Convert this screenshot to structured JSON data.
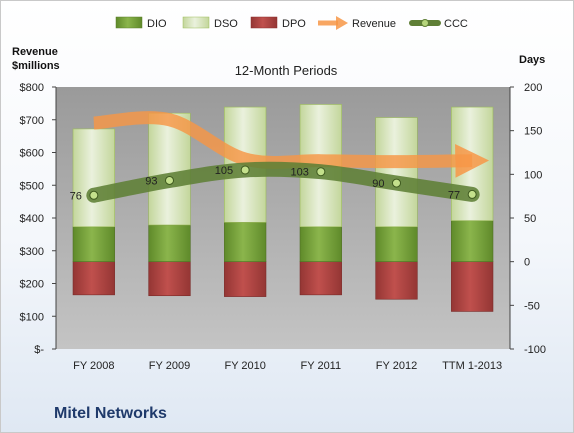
{
  "company": "Mitel Networks",
  "chart_data": {
    "type": "bar",
    "title": "12-Month Periods",
    "categories": [
      "FY 2008",
      "FY 2009",
      "FY 2010",
      "FY 2011",
      "FY 2012",
      "TTM 1-2013"
    ],
    "left_axis": {
      "label_line1": "Revenue",
      "label_line2": "$millions",
      "ylim": [
        0,
        800
      ],
      "ticks": [
        0,
        100,
        200,
        300,
        400,
        500,
        600,
        700,
        800
      ],
      "tick_labels": [
        "$-",
        "$100",
        "$200",
        "$300",
        "$400",
        "$500",
        "$600",
        "$700",
        "$800"
      ]
    },
    "right_axis": {
      "label": "Days",
      "ylim": [
        -100,
        200
      ],
      "ticks": [
        -100,
        -50,
        0,
        50,
        100,
        150,
        200
      ],
      "tick_labels": [
        "-100",
        "-50",
        "0",
        "50",
        "100",
        "150",
        "200"
      ]
    },
    "series": [
      {
        "name": "DIO",
        "axis": "right",
        "kind": "stacked-bar",
        "color": "#77a03a",
        "values": [
          40,
          42,
          45,
          40,
          40,
          47
        ]
      },
      {
        "name": "DSO",
        "axis": "right",
        "kind": "stacked-bar",
        "color": "#d7e4bd",
        "values": [
          112,
          128,
          132,
          140,
          125,
          130
        ]
      },
      {
        "name": "DPO",
        "axis": "right",
        "kind": "negative-bar",
        "color": "#c0504d",
        "values": [
          -38,
          -39,
          -40,
          -38,
          -43,
          -57
        ]
      },
      {
        "name": "Revenue",
        "axis": "left",
        "kind": "arrow-line",
        "color": "#f79646",
        "values": [
          690,
          700,
          580,
          575,
          572,
          575
        ]
      },
      {
        "name": "CCC",
        "axis": "right",
        "kind": "thick-line",
        "color": "#5f7f36",
        "values": [
          76,
          93,
          105,
          103,
          90,
          77
        ]
      }
    ],
    "ccc_labels": [
      "76",
      "93",
      "105",
      "103",
      "90",
      "77"
    ],
    "legend_position": "top",
    "grid": false
  }
}
